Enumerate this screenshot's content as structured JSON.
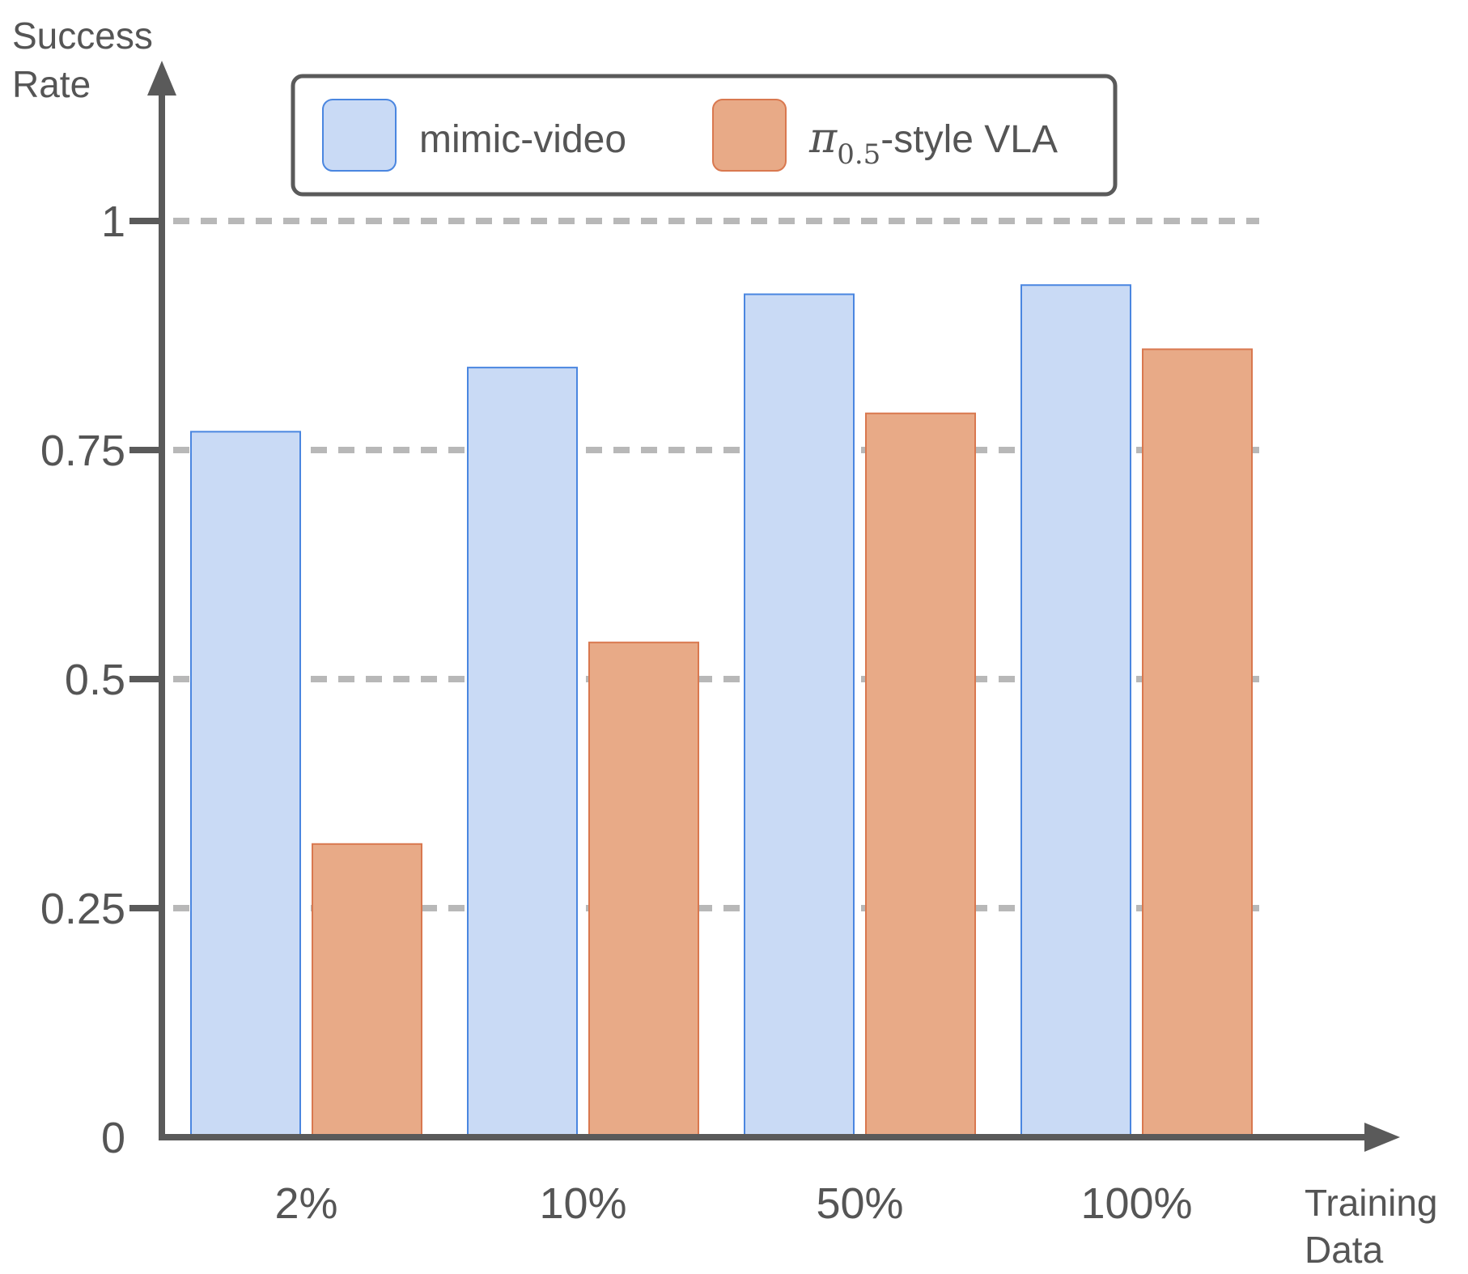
{
  "chart_data": {
    "type": "bar",
    "categories": [
      "2%",
      "10%",
      "50%",
      "100%"
    ],
    "series": [
      {
        "name": "mimic-video",
        "values": [
          0.77,
          0.84,
          0.92,
          0.93
        ],
        "fill": "#c9daf5",
        "stroke": "#4a86e0"
      },
      {
        "name_prefix": "π",
        "name_subscript": "0.5",
        "name_suffix": "-style VLA",
        "values": [
          0.32,
          0.54,
          0.79,
          0.86
        ],
        "fill": "#e8aa87",
        "stroke": "#d9784f"
      }
    ],
    "ylabel_lines": [
      "Success",
      "Rate"
    ],
    "xlabel_lines": [
      "Training",
      "Data"
    ],
    "ylim": [
      0,
      1
    ],
    "yticks": [
      {
        "value": 0,
        "label": "0"
      },
      {
        "value": 0.25,
        "label": "0.25"
      },
      {
        "value": 0.5,
        "label": "0.5"
      },
      {
        "value": 0.75,
        "label": "0.75"
      },
      {
        "value": 1,
        "label": "1"
      }
    ],
    "grid": "dashed horizontal",
    "legend_position": "top"
  },
  "colors": {
    "axis": "#5a5a5a",
    "grid": "#b8b8b8",
    "text": "#555555"
  }
}
